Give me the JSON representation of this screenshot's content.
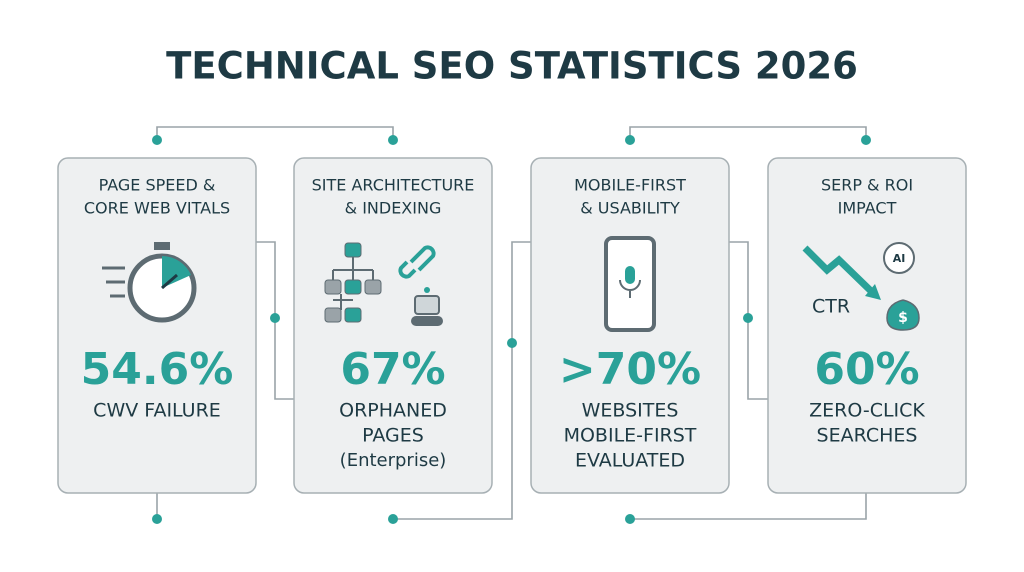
{
  "title": "TECHNICAL SEO STATISTICS 2026",
  "cards": [
    {
      "heading": [
        "PAGE SPEED &",
        "CORE WEB VITALS"
      ],
      "stat": "54.6%",
      "label": [
        "CWV FAILURE"
      ]
    },
    {
      "heading": [
        "SITE ARCHITECTURE",
        "& INDEXING"
      ],
      "stat": "67%",
      "label": [
        "ORPHANED",
        "PAGES"
      ],
      "note": "(Enterprise)"
    },
    {
      "heading": [
        "MOBILE-FIRST",
        "& USABILITY"
      ],
      "stat": ">70%",
      "label": [
        "WEBSITES",
        "MOBILE-FIRST",
        "EVALUATED"
      ]
    },
    {
      "heading": [
        "SERP & ROI",
        "IMPACT"
      ],
      "stat": "60%",
      "label": [
        "ZERO-CLICK",
        "SEARCHES"
      ],
      "icon_text": [
        "CTR",
        "AI",
        "$"
      ]
    }
  ]
}
